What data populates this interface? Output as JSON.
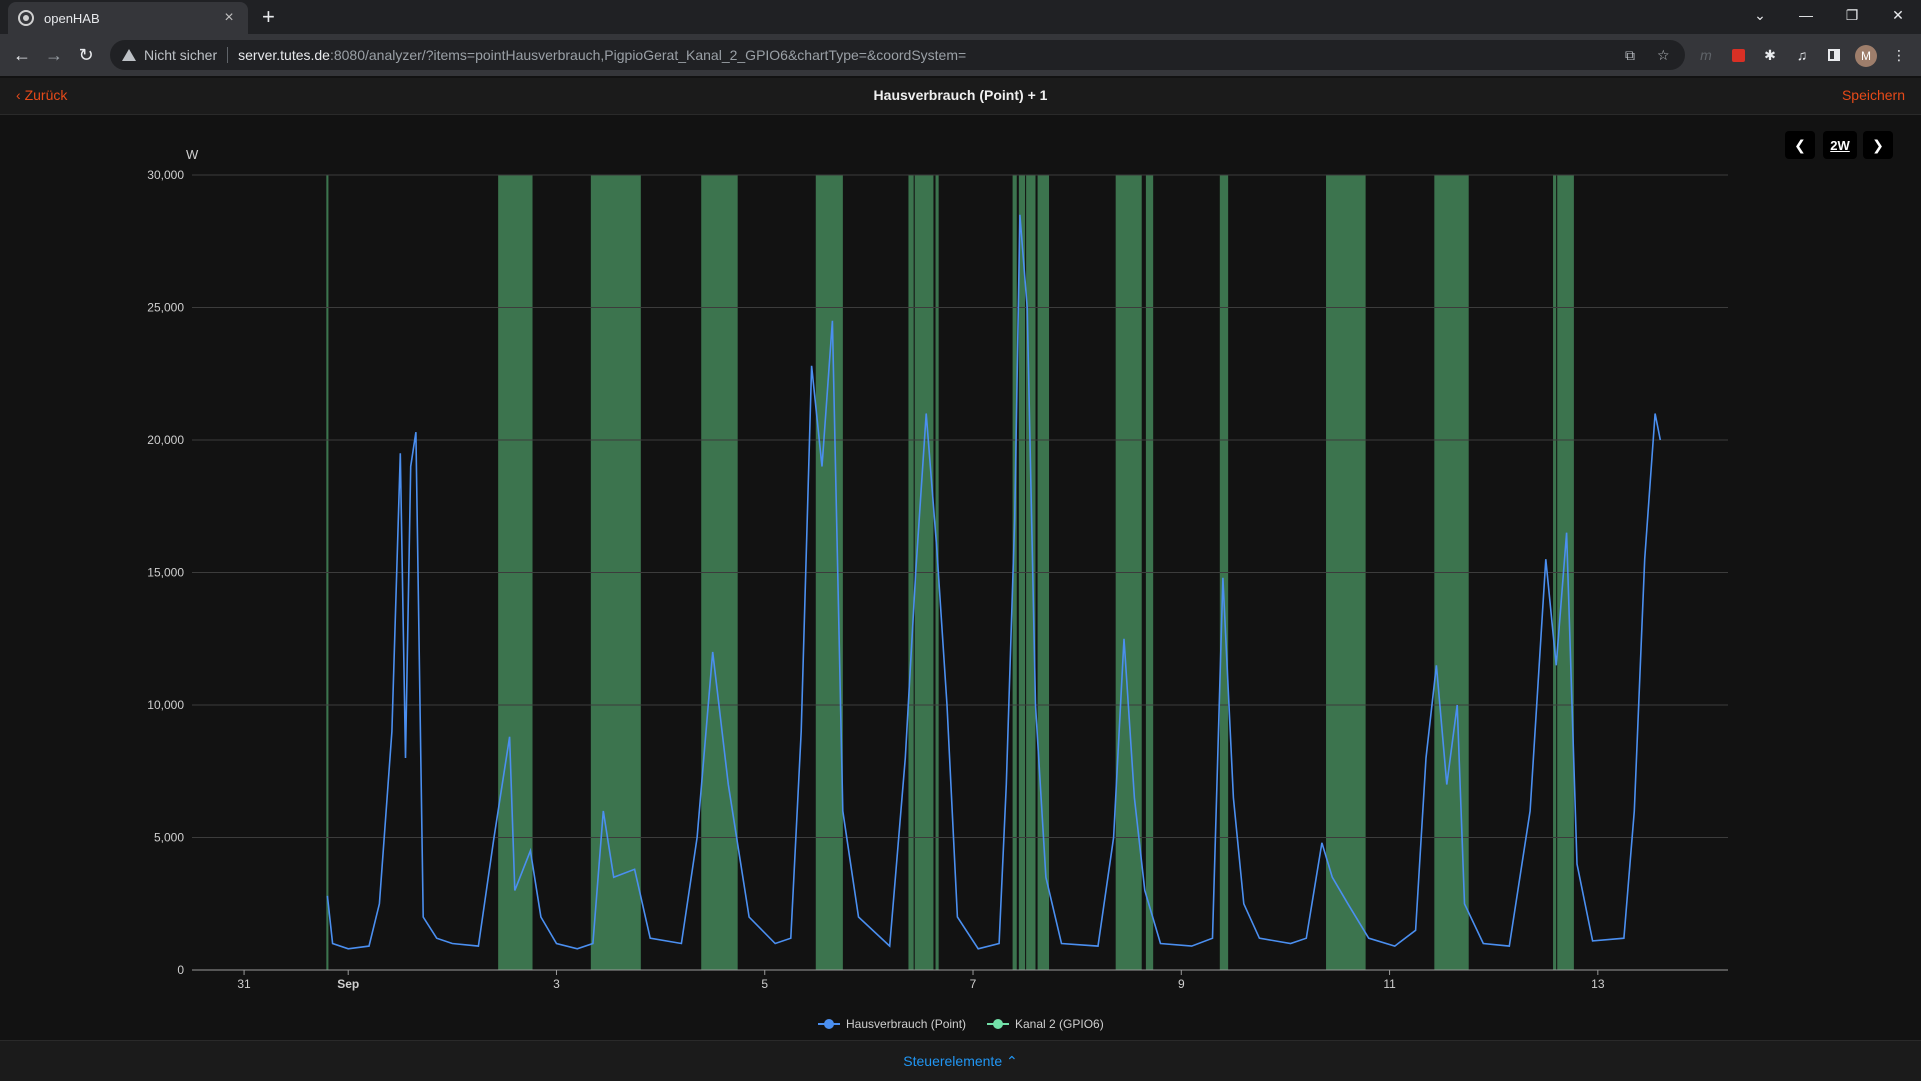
{
  "browser": {
    "tab_title": "openHAB",
    "tab_close": "×",
    "new_tab": "+",
    "security_label": "Nicht sicher",
    "url_host": "server.tutes.de",
    "url_rest": ":8080/analyzer/?items=pointHausverbrauch,PigpioGerat_Kanal_2_GPIO6&chartType=&coordSystem=",
    "avatar_letter": "M"
  },
  "app": {
    "back_label": "Zurück",
    "title": "Hausverbrauch (Point) + 1",
    "save_label": "Speichern",
    "period_label": "2W",
    "controls_label": "Steuerelemente"
  },
  "colors": {
    "accent": "#e64a19",
    "link": "#2196f3",
    "series_power": "#4b8ff0",
    "series_switch": "#3f7a52",
    "legend_switch": "#72e0a8"
  },
  "chart_data": {
    "type": "line",
    "y_unit_label": "W",
    "ylim": [
      0,
      30000
    ],
    "y_ticks": [
      {
        "v": 0,
        "label": "0"
      },
      {
        "v": 5000,
        "label": "5,000"
      },
      {
        "v": 10000,
        "label": "10,000"
      },
      {
        "v": 15000,
        "label": "15,000"
      },
      {
        "v": 20000,
        "label": "20,000"
      },
      {
        "v": 25000,
        "label": "25,000"
      },
      {
        "v": 30000,
        "label": "30,000"
      }
    ],
    "xlim_days": [
      -1.5,
      13.25
    ],
    "x_ticks": [
      {
        "d": -1,
        "label": "31",
        "bold": false
      },
      {
        "d": 0,
        "label": "Sep",
        "bold": true
      },
      {
        "d": 2,
        "label": "3",
        "bold": false
      },
      {
        "d": 4,
        "label": "5",
        "bold": false
      },
      {
        "d": 6,
        "label": "7",
        "bold": false
      },
      {
        "d": 8,
        "label": "9",
        "bold": false
      },
      {
        "d": 10,
        "label": "11",
        "bold": false
      },
      {
        "d": 12,
        "label": "13",
        "bold": false
      }
    ],
    "grid": true,
    "legend_position": "bottom-center",
    "series": [
      {
        "name": "Hausverbrauch (Point)",
        "points": [
          [
            -0.2,
            2800
          ],
          [
            -0.15,
            1000
          ],
          [
            0,
            800
          ],
          [
            0.2,
            900
          ],
          [
            0.3,
            2500
          ],
          [
            0.42,
            9000
          ],
          [
            0.5,
            19500
          ],
          [
            0.55,
            8000
          ],
          [
            0.6,
            19000
          ],
          [
            0.65,
            20300
          ],
          [
            0.72,
            2000
          ],
          [
            0.85,
            1200
          ],
          [
            1.0,
            1000
          ],
          [
            1.25,
            900
          ],
          [
            1.4,
            5000
          ],
          [
            1.55,
            8800
          ],
          [
            1.6,
            3000
          ],
          [
            1.75,
            4500
          ],
          [
            1.85,
            2000
          ],
          [
            2.0,
            1000
          ],
          [
            2.2,
            800
          ],
          [
            2.35,
            1000
          ],
          [
            2.45,
            6000
          ],
          [
            2.55,
            3500
          ],
          [
            2.75,
            3800
          ],
          [
            2.9,
            1200
          ],
          [
            3.2,
            1000
          ],
          [
            3.35,
            5000
          ],
          [
            3.5,
            12000
          ],
          [
            3.65,
            7000
          ],
          [
            3.85,
            2000
          ],
          [
            4.1,
            1000
          ],
          [
            4.25,
            1200
          ],
          [
            4.35,
            9000
          ],
          [
            4.45,
            22800
          ],
          [
            4.55,
            19000
          ],
          [
            4.65,
            24500
          ],
          [
            4.75,
            6000
          ],
          [
            4.9,
            2000
          ],
          [
            5.2,
            900
          ],
          [
            5.35,
            8000
          ],
          [
            5.45,
            15000
          ],
          [
            5.55,
            21000
          ],
          [
            5.65,
            16000
          ],
          [
            5.75,
            10000
          ],
          [
            5.85,
            2000
          ],
          [
            6.05,
            800
          ],
          [
            6.25,
            1000
          ],
          [
            6.32,
            7000
          ],
          [
            6.4,
            17000
          ],
          [
            6.45,
            28500
          ],
          [
            6.52,
            25000
          ],
          [
            6.6,
            10000
          ],
          [
            6.7,
            3500
          ],
          [
            6.85,
            1000
          ],
          [
            7.2,
            900
          ],
          [
            7.35,
            5000
          ],
          [
            7.45,
            12500
          ],
          [
            7.55,
            6500
          ],
          [
            7.65,
            3000
          ],
          [
            7.8,
            1000
          ],
          [
            8.1,
            900
          ],
          [
            8.3,
            1200
          ],
          [
            8.4,
            14800
          ],
          [
            8.5,
            6500
          ],
          [
            8.6,
            2500
          ],
          [
            8.75,
            1200
          ],
          [
            9.05,
            1000
          ],
          [
            9.2,
            1200
          ],
          [
            9.35,
            4800
          ],
          [
            9.45,
            3500
          ],
          [
            9.6,
            2500
          ],
          [
            9.8,
            1200
          ],
          [
            10.05,
            900
          ],
          [
            10.25,
            1500
          ],
          [
            10.35,
            8000
          ],
          [
            10.45,
            11500
          ],
          [
            10.55,
            7000
          ],
          [
            10.65,
            10000
          ],
          [
            10.72,
            2500
          ],
          [
            10.9,
            1000
          ],
          [
            11.15,
            900
          ],
          [
            11.35,
            6000
          ],
          [
            11.5,
            15500
          ],
          [
            11.6,
            11500
          ],
          [
            11.7,
            16500
          ],
          [
            11.8,
            4000
          ],
          [
            11.95,
            1100
          ],
          [
            12.25,
            1200
          ],
          [
            12.35,
            6000
          ],
          [
            12.45,
            15500
          ],
          [
            12.55,
            21000
          ],
          [
            12.6,
            20000
          ]
        ]
      },
      {
        "name": "Kanal 2 (GPIO6)",
        "on_intervals": [
          [
            -0.21,
            -0.19
          ],
          [
            1.44,
            1.77
          ],
          [
            2.33,
            2.81
          ],
          [
            3.39,
            3.74
          ],
          [
            4.49,
            4.75
          ],
          [
            5.38,
            5.43
          ],
          [
            5.44,
            5.62
          ],
          [
            5.64,
            5.67
          ],
          [
            6.38,
            6.42
          ],
          [
            6.44,
            6.5
          ],
          [
            6.51,
            6.6
          ],
          [
            6.62,
            6.73
          ],
          [
            7.37,
            7.62
          ],
          [
            7.66,
            7.73
          ],
          [
            8.37,
            8.45
          ],
          [
            9.39,
            9.77
          ],
          [
            10.43,
            10.76
          ],
          [
            11.57,
            11.6
          ],
          [
            11.61,
            11.77
          ]
        ]
      }
    ]
  }
}
